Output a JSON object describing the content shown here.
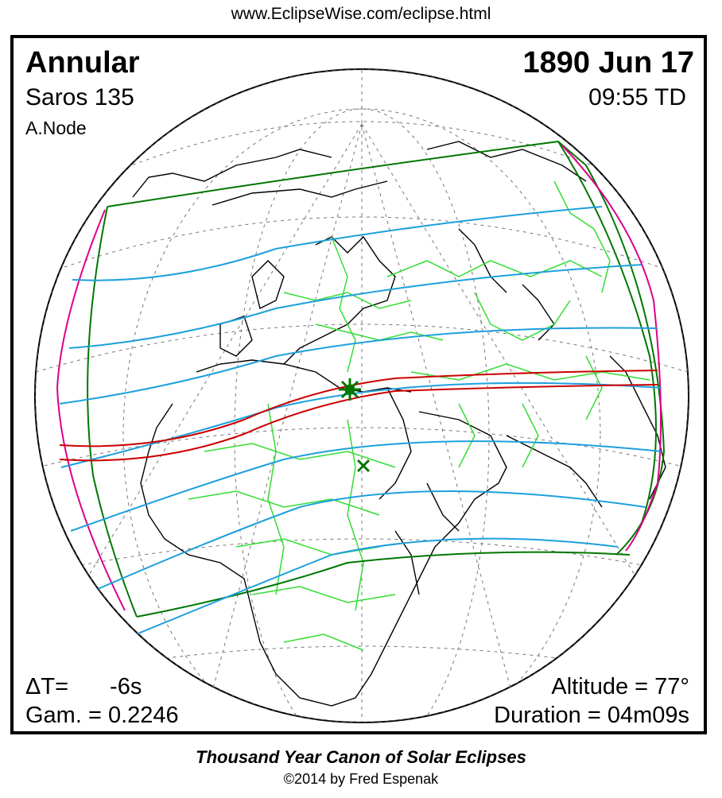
{
  "header": {
    "url": "www.EclipseWise.com/eclipse.html"
  },
  "eclipse": {
    "type": "Annular",
    "date": "1890 Jun 17",
    "saros": "Saros 135",
    "time": "09:55 TD",
    "node": "A.Node",
    "delta_t_label": "ΔT=",
    "delta_t_value": "-6s",
    "gamma": "Gam. = 0.2246",
    "altitude": "Altitude = 77°",
    "duration": "Duration = 04m09s"
  },
  "footer": {
    "canon": "Thousand Year Canon of Solar Eclipses",
    "copyright": "©2014 by Fred Espenak"
  },
  "colors": {
    "globe_outline": "#000000",
    "coastline": "#000000",
    "borders": "#33dd33",
    "penumbra_limits": "#007700",
    "half_lines": "#1ea0dc",
    "central_path": "#cc0000",
    "rise_set_curve": "#dd0088",
    "greatest_eclipse_marker": "#007700",
    "graticule": "#666666"
  },
  "markers": {
    "greatest_eclipse_icon": "star-icon",
    "greatest_duration_icon": "x-cross-icon"
  }
}
